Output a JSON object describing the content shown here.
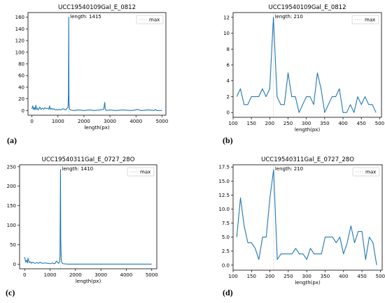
{
  "panel_labels": [
    "(a)",
    "(b)",
    "(c)",
    "(d)"
  ],
  "chart_data": [
    {
      "type": "line",
      "title": "UCC19540109Gal_E_0812",
      "xlabel": "length(px)",
      "ylabel": "",
      "xlim": [
        -150,
        5150
      ],
      "ylim": [
        -8,
        168
      ],
      "xticks": [
        0,
        1000,
        2000,
        3000,
        4000,
        5000
      ],
      "yticks": [
        0,
        20,
        40,
        60,
        80,
        100,
        120,
        140,
        160
      ],
      "legend": {
        "label": "max",
        "placement": "top-right"
      },
      "annotation": "length: 1415",
      "max_x": 1415,
      "line_color": "#1f77b4",
      "max_line_color": "#c8c8c8",
      "grid": false,
      "x": [
        0,
        30,
        60,
        90,
        120,
        150,
        180,
        210,
        240,
        270,
        300,
        350,
        400,
        450,
        500,
        550,
        600,
        650,
        680,
        700,
        720,
        760,
        800,
        850,
        900,
        950,
        1000,
        1050,
        1100,
        1150,
        1200,
        1250,
        1300,
        1350,
        1390,
        1405,
        1415,
        1425,
        1440,
        1480,
        1600,
        1800,
        2000,
        2200,
        2400,
        2600,
        2760,
        2800,
        2820,
        2840,
        2880,
        3000,
        3200,
        3500,
        3800,
        4000,
        4050,
        4200,
        4500,
        4700,
        4750,
        4800,
        5000
      ],
      "y": [
        3,
        8,
        2,
        5,
        1,
        9,
        2,
        4,
        1,
        3,
        6,
        2,
        4,
        2,
        5,
        3,
        4,
        2,
        8,
        3,
        2,
        4,
        2,
        3,
        1,
        2,
        1,
        2,
        1,
        2,
        3,
        2,
        1,
        4,
        6,
        30,
        160,
        20,
        3,
        1,
        0,
        1,
        0,
        1,
        0,
        1,
        2,
        14,
        3,
        1,
        0,
        1,
        0,
        1,
        0,
        1,
        2,
        0,
        1,
        0,
        2,
        0,
        0
      ]
    },
    {
      "type": "line",
      "title": "UCC19540109Gal_E_0812",
      "xlabel": "length(px)",
      "ylabel": "",
      "xlim": [
        100,
        505
      ],
      "ylim": [
        -0.6,
        12.6
      ],
      "xticks": [
        100,
        150,
        200,
        250,
        300,
        350,
        400,
        450,
        500
      ],
      "yticks": [
        0,
        2,
        4,
        6,
        8,
        10,
        12
      ],
      "legend": {
        "label": "max",
        "placement": "top-right"
      },
      "annotation": "length: 210",
      "max_x": 210,
      "line_color": "#1f77b4",
      "max_line_color": "#c8c8c8",
      "grid": false,
      "x": [
        110,
        120,
        130,
        140,
        150,
        160,
        170,
        180,
        190,
        200,
        210,
        220,
        230,
        240,
        250,
        260,
        270,
        280,
        290,
        300,
        310,
        320,
        330,
        340,
        350,
        360,
        370,
        380,
        390,
        400,
        410,
        420,
        430,
        440,
        450,
        460,
        470,
        480,
        490
      ],
      "y": [
        2,
        3,
        1,
        1,
        2,
        2,
        2,
        3,
        2,
        3,
        12,
        2,
        1,
        1,
        5,
        2,
        2,
        0,
        1,
        2,
        2,
        1,
        5,
        3,
        0,
        1,
        2,
        2,
        3,
        0,
        0,
        1,
        0,
        2,
        1,
        2,
        1,
        1,
        0
      ]
    },
    {
      "type": "line",
      "title": "UCC19540311Gal_E_0727_28O",
      "xlabel": "length(px)",
      "ylabel": "",
      "xlim": [
        -200,
        5200
      ],
      "ylim": [
        -12,
        255
      ],
      "xticks": [
        0,
        1000,
        2000,
        3000,
        4000,
        5000
      ],
      "yticks": [
        0,
        50,
        100,
        150,
        200,
        250
      ],
      "legend": {
        "label": "max",
        "placement": "top-right"
      },
      "annotation": "length: 1410",
      "max_x": 1410,
      "line_color": "#1f77b4",
      "max_line_color": "#c8c8c8",
      "grid": false,
      "x": [
        0,
        40,
        80,
        110,
        130,
        180,
        230,
        260,
        300,
        360,
        420,
        480,
        550,
        600,
        650,
        700,
        800,
        900,
        1000,
        1100,
        1150,
        1200,
        1250,
        1300,
        1340,
        1370,
        1390,
        1400,
        1410,
        1420,
        1440,
        1470,
        1500,
        1700,
        2000,
        3000,
        4000,
        5000
      ],
      "y": [
        18,
        5,
        10,
        3,
        15,
        4,
        6,
        2,
        5,
        3,
        2,
        4,
        2,
        5,
        3,
        2,
        3,
        2,
        1,
        3,
        1,
        2,
        8,
        4,
        2,
        6,
        20,
        140,
        243,
        60,
        10,
        3,
        1,
        0,
        0,
        0,
        0,
        0
      ]
    },
    {
      "type": "line",
      "title": "UCC19540311Gal_E_0727_28O",
      "xlabel": "length(px)",
      "ylabel": "",
      "xlim": [
        100,
        505
      ],
      "ylim": [
        -0.9,
        17.9
      ],
      "xticks": [
        100,
        150,
        200,
        250,
        300,
        350,
        400,
        450,
        500
      ],
      "yticks": [
        0.0,
        2.5,
        5.0,
        7.5,
        10.0,
        12.5,
        15.0,
        17.5
      ],
      "legend": {
        "label": "max",
        "placement": "top-right"
      },
      "annotation": "length: 210",
      "max_x": 210,
      "line_color": "#1f77b4",
      "max_line_color": "#c8c8c8",
      "grid": false,
      "x": [
        110,
        120,
        130,
        140,
        150,
        160,
        170,
        180,
        190,
        200,
        210,
        220,
        230,
        240,
        250,
        260,
        270,
        280,
        290,
        300,
        310,
        320,
        330,
        340,
        350,
        360,
        370,
        380,
        390,
        400,
        410,
        420,
        430,
        440,
        450,
        460,
        470,
        480,
        490
      ],
      "y": [
        5,
        12,
        7,
        4,
        4,
        3,
        1,
        5,
        5,
        12,
        17,
        1,
        2,
        2,
        2,
        2,
        3,
        2,
        2,
        1,
        3,
        2,
        2,
        2,
        5,
        5,
        5,
        4,
        5,
        2,
        4,
        7,
        4,
        6,
        6,
        1,
        5,
        4,
        0
      ]
    }
  ]
}
